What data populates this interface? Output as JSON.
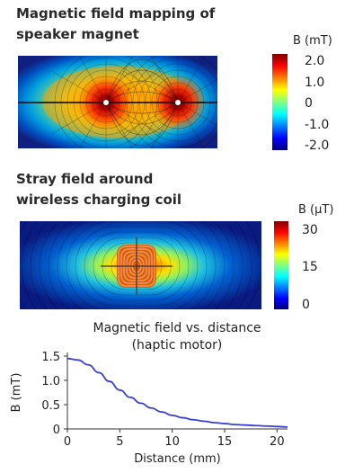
{
  "chart_data": [
    {
      "type": "heatmap",
      "title": "Magnetic field mapping of speaker magnet",
      "title_lines": [
        "Magnetic field mapping of",
        "speaker magnet"
      ],
      "colorbar_label": "B (mT)",
      "colorbar_ticks": [
        "2.0",
        "1.0",
        "0",
        "-1.0",
        "-2.0"
      ],
      "colorbar_range": [
        -2.0,
        2.0
      ],
      "colormap": "jet",
      "sources": [
        {
          "x": -1,
          "y": 0
        },
        {
          "x": 1,
          "y": 0
        }
      ]
    },
    {
      "type": "heatmap",
      "title": "Stray field around wireless charging coil",
      "title_lines": [
        "Stray field around",
        "wireless charging coil"
      ],
      "colorbar_label": "B (µT)",
      "colorbar_ticks": [
        "30",
        "15",
        "0"
      ],
      "colorbar_range": [
        0,
        30
      ],
      "colormap": "jet"
    },
    {
      "type": "line",
      "title": "Magnetic field vs. distance (haptic motor)",
      "title_lines": [
        "Magnetic field vs. distance",
        "(haptic motor)"
      ],
      "xlabel": "Distance (mm)",
      "ylabel": "B (mT)",
      "xlim": [
        0,
        21
      ],
      "ylim": [
        0,
        1.5
      ],
      "xticks": [
        0,
        5,
        10,
        15,
        20
      ],
      "yticks": [
        0,
        0.5,
        1.0,
        1.5
      ],
      "ytick_labels": [
        "0",
        "0.5",
        "1.0",
        "1.5"
      ],
      "series_color": "#3a3fd0",
      "x": [
        0,
        1,
        2,
        3,
        4,
        5,
        6,
        7,
        8,
        9,
        10,
        11,
        12,
        13,
        14,
        15,
        16,
        17,
        18,
        19,
        20,
        21
      ],
      "y": [
        1.45,
        1.42,
        1.32,
        1.16,
        0.98,
        0.8,
        0.65,
        0.53,
        0.43,
        0.35,
        0.28,
        0.23,
        0.19,
        0.16,
        0.13,
        0.11,
        0.09,
        0.08,
        0.07,
        0.06,
        0.05,
        0.04
      ]
    }
  ]
}
